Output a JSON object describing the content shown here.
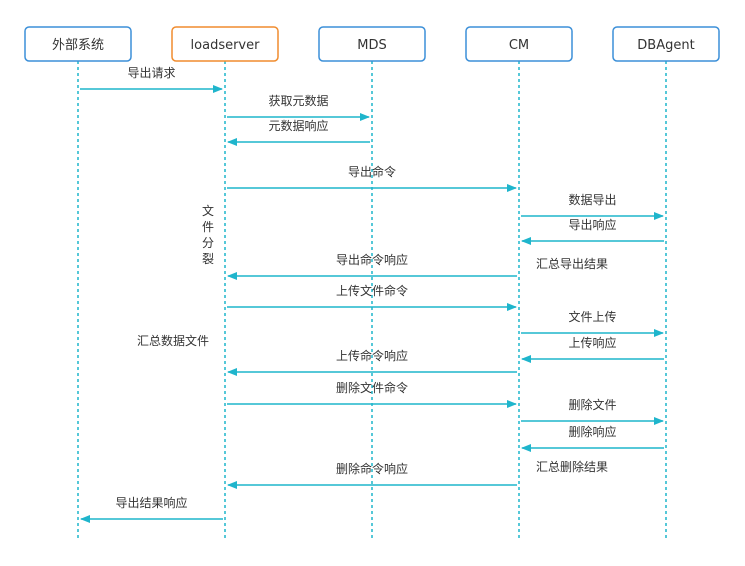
{
  "colors": {
    "accent": "#1fb5cc",
    "actor_border": "#3b8fd8",
    "actor_highlight_border": "#f08c2e",
    "text": "#333333",
    "background": "#ffffff"
  },
  "actors": [
    {
      "id": "ext",
      "label": "外部系统",
      "highlight": false
    },
    {
      "id": "ls",
      "label": "loadserver",
      "highlight": true
    },
    {
      "id": "mds",
      "label": "MDS",
      "highlight": false
    },
    {
      "id": "cm",
      "label": "CM",
      "highlight": false
    },
    {
      "id": "dba",
      "label": "DBAgent",
      "highlight": false
    }
  ],
  "messages": [
    {
      "from": "ext",
      "to": "ls",
      "label": "导出请求"
    },
    {
      "from": "ls",
      "to": "mds",
      "label": "获取元数据"
    },
    {
      "from": "mds",
      "to": "ls",
      "label": "元数据响应"
    },
    {
      "from": "ls",
      "to": "cm",
      "label": "导出命令"
    },
    {
      "from": "cm",
      "to": "dba",
      "label": "数据导出"
    },
    {
      "from": "dba",
      "to": "cm",
      "label": "导出响应"
    },
    {
      "from": "cm",
      "to": "ls",
      "label": "导出命令响应"
    },
    {
      "from": "ls",
      "to": "cm",
      "label": "上传文件命令"
    },
    {
      "from": "cm",
      "to": "dba",
      "label": "文件上传"
    },
    {
      "from": "dba",
      "to": "cm",
      "label": "上传响应"
    },
    {
      "from": "cm",
      "to": "ls",
      "label": "上传命令响应"
    },
    {
      "from": "ls",
      "to": "cm",
      "label": "删除文件命令"
    },
    {
      "from": "cm",
      "to": "dba",
      "label": "删除文件"
    },
    {
      "from": "dba",
      "to": "cm",
      "label": "删除响应"
    },
    {
      "from": "cm",
      "to": "ls",
      "label": "删除命令响应"
    },
    {
      "from": "ls",
      "to": "ext",
      "label": "导出结果响应"
    }
  ],
  "notes": [
    {
      "label": "文件分裂",
      "vertical": true
    },
    {
      "label": "汇总导出结果",
      "vertical": false
    },
    {
      "label": "汇总数据文件",
      "vertical": false
    },
    {
      "label": "汇总删除结果",
      "vertical": false
    }
  ]
}
